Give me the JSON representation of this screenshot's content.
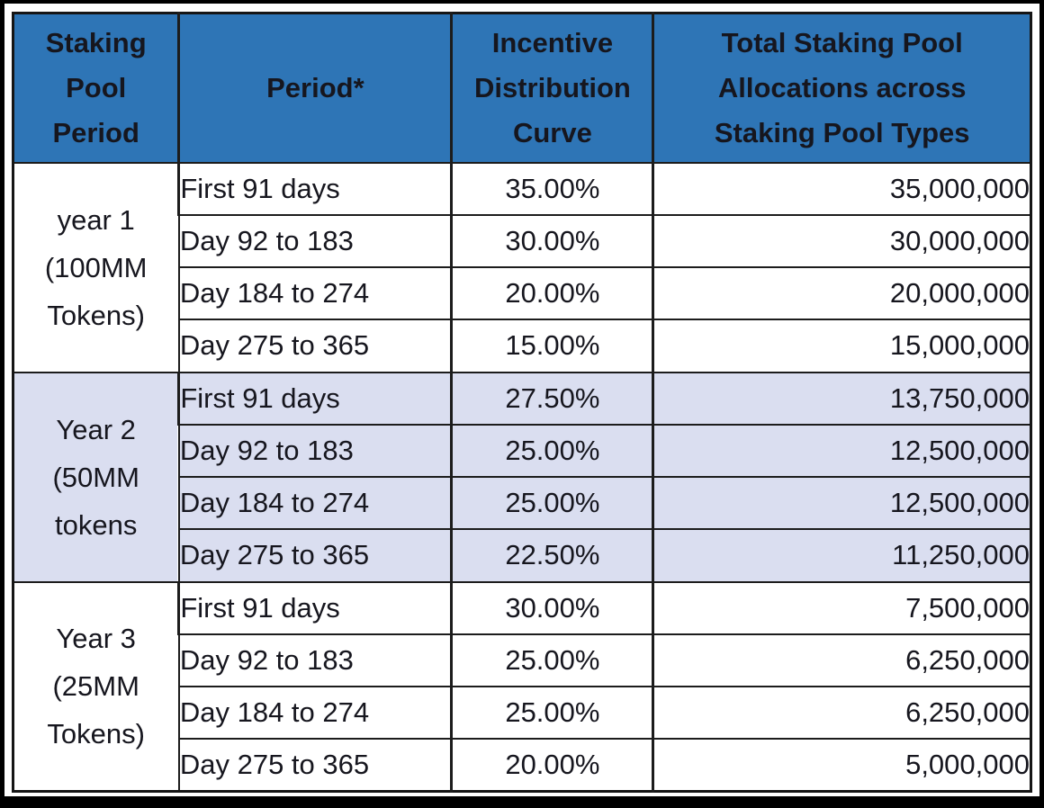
{
  "colors": {
    "header_bg": "#2E75B6",
    "header_text": "#FFFFFF",
    "body_text": "#16161E",
    "highlight_row_bg": "#DADEF0",
    "row_bg": "#FFFFFF",
    "grid_border": "#1C1C1C",
    "outer_frame": "#000000"
  },
  "table": {
    "headers": {
      "staking_pool_period": "Staking\nPool\nPeriod",
      "period": "Period*",
      "incentive_distribution_curve": "Incentive\nDistribution\nCurve",
      "total_allocations": "Total Staking Pool\nAllocations across\nStaking Pool Types"
    },
    "groups": [
      {
        "label": "year 1\n(100MM\nTokens)",
        "highlighted": false,
        "rows": [
          {
            "period": "First 91 days",
            "curve": "35.00%",
            "total": "35,000,000"
          },
          {
            "period": "Day 92 to 183",
            "curve": "30.00%",
            "total": "30,000,000"
          },
          {
            "period": "Day 184 to 274",
            "curve": "20.00%",
            "total": "20,000,000"
          },
          {
            "period": "Day 275 to 365",
            "curve": "15.00%",
            "total": "15,000,000"
          }
        ]
      },
      {
        "label": "Year 2\n(50MM\ntokens",
        "highlighted": true,
        "rows": [
          {
            "period": "First 91 days",
            "curve": "27.50%",
            "total": "13,750,000"
          },
          {
            "period": "Day 92 to 183",
            "curve": "25.00%",
            "total": "12,500,000"
          },
          {
            "period": "Day 184 to 274",
            "curve": "25.00%",
            "total": "12,500,000"
          },
          {
            "period": "Day 275 to 365",
            "curve": "22.50%",
            "total": "11,250,000"
          }
        ]
      },
      {
        "label": "Year 3\n(25MM\nTokens)",
        "highlighted": false,
        "rows": [
          {
            "period": "First 91 days",
            "curve": "30.00%",
            "total": "7,500,000"
          },
          {
            "period": "Day 92 to 183",
            "curve": "25.00%",
            "total": "6,250,000"
          },
          {
            "period": "Day 184 to 274",
            "curve": "25.00%",
            "total": "6,250,000"
          },
          {
            "period": "Day 275 to 365",
            "curve": "20.00%",
            "total": "5,000,000"
          }
        ]
      }
    ]
  }
}
